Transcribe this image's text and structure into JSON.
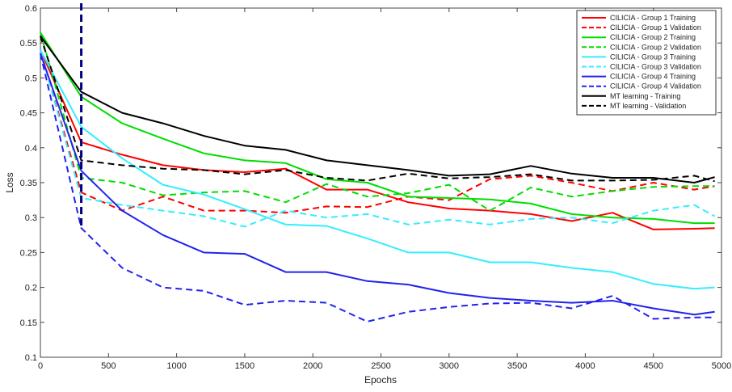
{
  "chart_data": {
    "type": "line",
    "title": "",
    "xlabel": "Epochs",
    "ylabel": "Loss",
    "xlim": [
      0,
      5000
    ],
    "ylim": [
      0.1,
      0.6
    ],
    "x_ticks": [
      "0",
      "500",
      "1000",
      "1500",
      "2000",
      "2500",
      "3000",
      "3500",
      "4000",
      "4500",
      "5000"
    ],
    "y_ticks": [
      "0.1",
      "0.15",
      "0.2",
      "0.25",
      "0.3",
      "0.35",
      "0.4",
      "0.45",
      "0.5",
      "0.55",
      "0.6"
    ],
    "grid": false,
    "legend_position": "top-right",
    "annotations": [
      {
        "type": "vertical-dashed-line",
        "x": 300,
        "color": "#000080"
      }
    ],
    "x": [
      0,
      300,
      600,
      900,
      1200,
      1500,
      1800,
      2100,
      2400,
      2700,
      3000,
      3300,
      3600,
      3900,
      4200,
      4500,
      4800,
      4950
    ],
    "series": [
      {
        "name": "CILICIA - Group 1 Training",
        "color": "#ff0000",
        "dash": "solid",
        "values": [
          0.54,
          0.408,
          0.39,
          0.375,
          0.368,
          0.365,
          0.37,
          0.34,
          0.34,
          0.322,
          0.313,
          0.31,
          0.305,
          0.295,
          0.307,
          0.283,
          0.284,
          0.285
        ]
      },
      {
        "name": "CILICIA - Group 1 Validation",
        "color": "#ff0000",
        "dash": "dashed",
        "values": [
          0.54,
          0.336,
          0.31,
          0.33,
          0.31,
          0.31,
          0.307,
          0.316,
          0.315,
          0.33,
          0.325,
          0.355,
          0.36,
          0.35,
          0.338,
          0.35,
          0.34,
          0.345
        ]
      },
      {
        "name": "CILICIA - Group 2 Training",
        "color": "#00dd00",
        "dash": "solid",
        "values": [
          0.565,
          0.473,
          0.435,
          0.413,
          0.392,
          0.382,
          0.378,
          0.355,
          0.35,
          0.33,
          0.328,
          0.326,
          0.32,
          0.305,
          0.3,
          0.298,
          0.292,
          0.292
        ]
      },
      {
        "name": "CILICIA - Group 2 Validation",
        "color": "#00dd00",
        "dash": "dashed",
        "values": [
          0.565,
          0.357,
          0.35,
          0.332,
          0.336,
          0.338,
          0.322,
          0.348,
          0.33,
          0.335,
          0.347,
          0.31,
          0.343,
          0.33,
          0.338,
          0.344,
          0.345,
          0.345
        ]
      },
      {
        "name": "CILICIA - Group 3 Training",
        "color": "#33eeff",
        "dash": "solid",
        "values": [
          0.54,
          0.43,
          0.385,
          0.347,
          0.333,
          0.312,
          0.29,
          0.288,
          0.27,
          0.25,
          0.25,
          0.236,
          0.236,
          0.228,
          0.222,
          0.205,
          0.198,
          0.2
        ]
      },
      {
        "name": "CILICIA - Group 3 Validation",
        "color": "#33eeff",
        "dash": "dashed",
        "values": [
          0.54,
          0.328,
          0.318,
          0.31,
          0.302,
          0.287,
          0.31,
          0.3,
          0.305,
          0.29,
          0.297,
          0.29,
          0.298,
          0.3,
          0.292,
          0.31,
          0.318,
          0.302
        ]
      },
      {
        "name": "CILICIA - Group 4 Training",
        "color": "#2222ee",
        "dash": "solid",
        "values": [
          0.535,
          0.367,
          0.31,
          0.275,
          0.25,
          0.248,
          0.222,
          0.222,
          0.209,
          0.204,
          0.192,
          0.185,
          0.181,
          0.178,
          0.181,
          0.17,
          0.161,
          0.165
        ]
      },
      {
        "name": "CILICIA - Group 4 Validation",
        "color": "#2222ee",
        "dash": "dashed",
        "values": [
          0.535,
          0.285,
          0.228,
          0.2,
          0.195,
          0.175,
          0.181,
          0.178,
          0.151,
          0.165,
          0.172,
          0.177,
          0.178,
          0.17,
          0.188,
          0.155,
          0.157,
          0.157
        ]
      },
      {
        "name": "MT learning - Training",
        "color": "#000000",
        "dash": "solid",
        "values": [
          0.56,
          0.48,
          0.45,
          0.435,
          0.417,
          0.403,
          0.397,
          0.382,
          0.375,
          0.368,
          0.36,
          0.362,
          0.374,
          0.363,
          0.357,
          0.357,
          0.35,
          0.358
        ]
      },
      {
        "name": "MT learning - Validation",
        "color": "#000000",
        "dash": "dashed",
        "values": [
          0.56,
          0.382,
          0.375,
          0.37,
          0.368,
          0.362,
          0.368,
          0.357,
          0.353,
          0.363,
          0.356,
          0.358,
          0.362,
          0.353,
          0.353,
          0.354,
          0.36,
          0.352
        ]
      }
    ]
  }
}
